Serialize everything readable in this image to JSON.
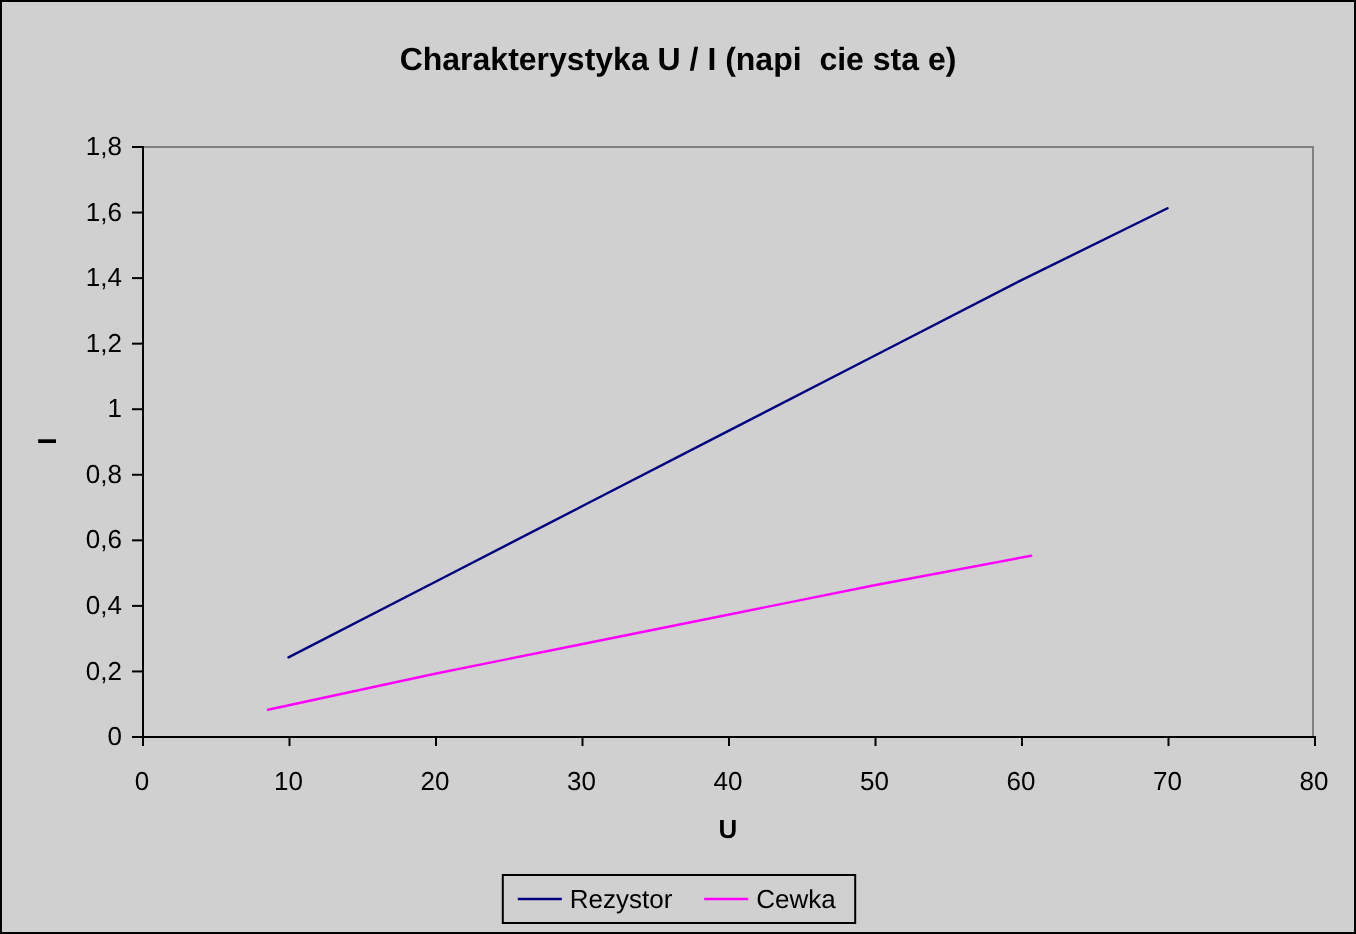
{
  "chart_data": {
    "type": "line",
    "title": "Charakterystyka U / I (napi  cie sta e)",
    "xlabel": "U",
    "ylabel": "I",
    "series": [
      {
        "name": "Rezystor",
        "color": "#000080",
        "x": [
          10,
          20,
          30,
          40,
          50,
          60,
          70
        ],
        "values": [
          0.24,
          0.47,
          0.7,
          0.93,
          1.16,
          1.39,
          1.61
        ]
      },
      {
        "name": "Cewka",
        "color": "#ff00ff",
        "x": [
          8.6,
          20,
          30,
          40,
          50,
          60.7
        ],
        "values": [
          0.08,
          0.19,
          0.28,
          0.37,
          0.46,
          0.55
        ]
      }
    ],
    "xlim": [
      0,
      80
    ],
    "xticks": [
      0,
      10,
      20,
      30,
      40,
      50,
      60,
      70,
      80
    ],
    "ylim": [
      0,
      1.8
    ],
    "yticks": [
      0,
      {
        "value": 0.2,
        "label": "0,2"
      },
      {
        "value": 0.4,
        "label": "0,4"
      },
      {
        "value": 0.6,
        "label": "0,6"
      },
      {
        "value": 0.8,
        "label": "0,8"
      },
      1,
      {
        "value": 1.2,
        "label": "1,2"
      },
      {
        "value": 1.4,
        "label": "1,4"
      },
      {
        "value": 1.6,
        "label": "1,6"
      },
      {
        "value": 1.8,
        "label": "1,8"
      }
    ],
    "legend": "bottom"
  }
}
